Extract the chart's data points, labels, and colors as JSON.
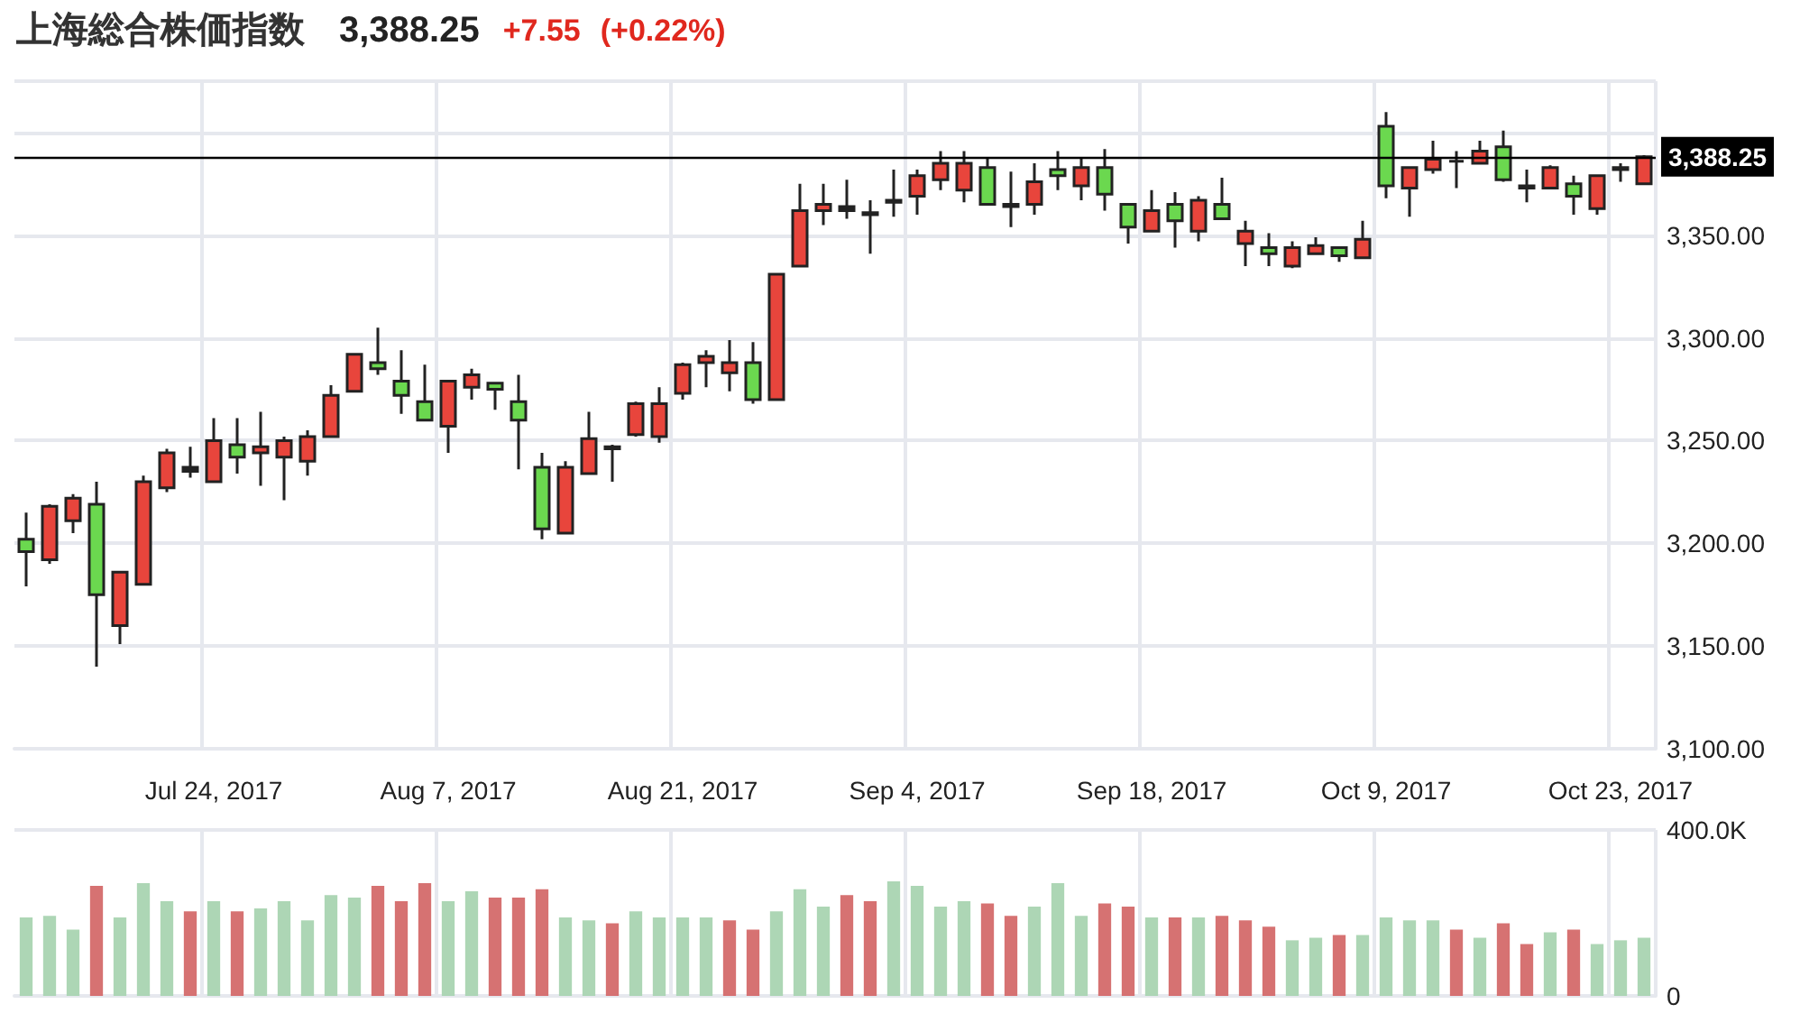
{
  "chart_data": [
    {
      "type": "candlestick",
      "title": "上海総合株価指数",
      "subtitle": "3,388.25",
      "annotations": [
        "+7.55",
        "(+0.22%)"
      ],
      "categories": [
        null,
        null,
        null,
        null,
        null,
        null,
        null,
        null,
        "Jul 24, 2017",
        null,
        null,
        null,
        null,
        null,
        null,
        null,
        null,
        null,
        "Aug 7, 2017",
        null,
        null,
        null,
        null,
        null,
        null,
        null,
        null,
        null,
        "Aug 21, 2017",
        null,
        null,
        null,
        null,
        null,
        null,
        null,
        null,
        null,
        "Sep 4, 2017",
        null,
        null,
        null,
        null,
        null,
        null,
        null,
        null,
        null,
        "Sep 18, 2017",
        null,
        null,
        null,
        null,
        null,
        null,
        null,
        null,
        null,
        "Oct 9, 2017",
        null,
        null,
        null,
        null,
        null,
        null,
        null,
        null,
        null,
        "Oct 23, 2017",
        null
      ],
      "ohlc": [
        [
          3202,
          3215,
          3179,
          3196
        ],
        [
          3192,
          3219,
          3190,
          3218
        ],
        [
          3211,
          3224,
          3205,
          3222
        ],
        [
          3219,
          3230,
          3140,
          3175
        ],
        [
          3160,
          3186,
          3151,
          3186
        ],
        [
          3180,
          3233,
          3180,
          3230
        ],
        [
          3227,
          3246,
          3225,
          3244
        ],
        [
          3235,
          3247,
          3232,
          3237
        ],
        [
          3230,
          3261,
          3230,
          3250
        ],
        [
          3248,
          3261,
          3234,
          3242
        ],
        [
          3244,
          3264,
          3228,
          3247
        ],
        [
          3242,
          3252,
          3221,
          3250
        ],
        [
          3240,
          3255,
          3233,
          3252
        ],
        [
          3252,
          3277,
          3252,
          3272
        ],
        [
          3274,
          3292,
          3274,
          3292
        ],
        [
          3288,
          3305,
          3282,
          3285
        ],
        [
          3279,
          3294,
          3263,
          3272
        ],
        [
          3269,
          3287,
          3260,
          3260
        ],
        [
          3257,
          3279,
          3244,
          3279
        ],
        [
          3276,
          3285,
          3270,
          3282
        ],
        [
          3278,
          3278,
          3265,
          3275
        ],
        [
          3269,
          3282,
          3236,
          3260
        ],
        [
          3237,
          3244,
          3202,
          3207
        ],
        [
          3205,
          3240,
          3205,
          3237
        ],
        [
          3234,
          3264,
          3234,
          3251
        ],
        [
          3246,
          3248,
          3230,
          3247
        ],
        [
          3253,
          3269,
          3252,
          3268
        ],
        [
          3252,
          3276,
          3249,
          3268
        ],
        [
          3273,
          3288,
          3270,
          3287
        ],
        [
          3288,
          3294,
          3276,
          3291
        ],
        [
          3283,
          3299,
          3274,
          3288
        ],
        [
          3288,
          3298,
          3268,
          3270
        ],
        [
          3270,
          3331,
          3270,
          3331
        ],
        [
          3335,
          3375,
          3335,
          3362
        ],
        [
          3362,
          3375,
          3355,
          3365
        ],
        [
          3362,
          3377,
          3358,
          3364
        ],
        [
          3361,
          3367,
          3341,
          3360
        ],
        [
          3366,
          3382,
          3359,
          3367
        ],
        [
          3369,
          3382,
          3360,
          3379
        ],
        [
          3377,
          3391,
          3372,
          3385
        ],
        [
          3372,
          3391,
          3366,
          3385
        ],
        [
          3383,
          3388,
          3365,
          3365
        ],
        [
          3365,
          3381,
          3354,
          3364
        ],
        [
          3365,
          3385,
          3360,
          3376
        ],
        [
          3382,
          3391,
          3372,
          3379
        ],
        [
          3374,
          3388,
          3367,
          3383
        ],
        [
          3383,
          3392,
          3362,
          3370
        ],
        [
          3365,
          3365,
          3346,
          3354
        ],
        [
          3352,
          3372,
          3352,
          3362
        ],
        [
          3365,
          3371,
          3344,
          3357
        ],
        [
          3352,
          3369,
          3347,
          3367
        ],
        [
          3365,
          3378,
          3358,
          3358
        ],
        [
          3346,
          3357,
          3335,
          3352
        ],
        [
          3344,
          3351,
          3335,
          3341
        ],
        [
          3335,
          3347,
          3334,
          3344
        ],
        [
          3341,
          3349,
          3341,
          3345
        ],
        [
          3344,
          3344,
          3337,
          3340
        ],
        [
          3339,
          3357,
          3339,
          3348
        ],
        [
          3403,
          3410,
          3368,
          3374
        ],
        [
          3373,
          3383,
          3359,
          3383
        ],
        [
          3382,
          3396,
          3380,
          3387
        ],
        [
          3386,
          3391,
          3373,
          3386
        ],
        [
          3385,
          3396,
          3385,
          3391
        ],
        [
          3393,
          3401,
          3376,
          3377
        ],
        [
          3374,
          3382,
          3366,
          3373
        ],
        [
          3373,
          3384,
          3373,
          3383
        ],
        [
          3375,
          3379,
          3360,
          3369
        ],
        [
          3363,
          3379,
          3360,
          3379
        ],
        [
          3382,
          3385,
          3376,
          3383
        ],
        [
          3375,
          3389,
          3375,
          3388.25
        ]
      ],
      "colors": [
        "#6bd84f",
        "#e8453c",
        "#e8453c",
        "#6bd84f",
        "#e8453c",
        "#e8453c",
        "#e8453c",
        "#222222",
        "#e8453c",
        "#6bd84f",
        "#e8453c",
        "#e8453c",
        "#e8453c",
        "#e8453c",
        "#e8453c",
        "#6bd84f",
        "#6bd84f",
        "#6bd84f",
        "#e8453c",
        "#e8453c",
        "#6bd84f",
        "#6bd84f",
        "#6bd84f",
        "#e8453c",
        "#e8453c",
        "#222222",
        "#e8453c",
        "#e8453c",
        "#e8453c",
        "#e8453c",
        "#e8453c",
        "#6bd84f",
        "#e8453c",
        "#e8453c",
        "#e8453c",
        "#222222",
        "#222222",
        "#222222",
        "#e8453c",
        "#e8453c",
        "#e8453c",
        "#6bd84f",
        "#222222",
        "#e8453c",
        "#6bd84f",
        "#e8453c",
        "#6bd84f",
        "#6bd84f",
        "#e8453c",
        "#6bd84f",
        "#e8453c",
        "#6bd84f",
        "#e8453c",
        "#6bd84f",
        "#e8453c",
        "#e8453c",
        "#6bd84f",
        "#e8453c",
        "#6bd84f",
        "#e8453c",
        "#e8453c",
        "#222222",
        "#e8453c",
        "#6bd84f",
        "#222222",
        "#e8453c",
        "#6bd84f",
        "#e8453c",
        "#222222",
        "#e8453c"
      ],
      "ylim": [
        3100,
        3425
      ],
      "yticks": [
        {
          "value": 3100,
          "label": "3,100.00"
        },
        {
          "value": 3150,
          "label": "3,150.00"
        },
        {
          "value": 3200,
          "label": "3,200.00"
        },
        {
          "value": 3250,
          "label": "3,250.00"
        },
        {
          "value": 3300,
          "label": "3,300.00"
        },
        {
          "value": 3350,
          "label": "3,350.00"
        },
        {
          "value": 3400,
          "label": null
        }
      ],
      "ref_lines": [
        {
          "axis": "y",
          "value": 3388.25,
          "label": "3,388.25",
          "color": "#000000"
        }
      ],
      "grid": true
    },
    {
      "type": "bar",
      "tick_labels": "y",
      "categories": [
        null,
        null,
        null,
        null,
        null,
        null,
        null,
        null,
        null,
        null,
        null,
        null,
        null,
        null,
        null,
        null,
        null,
        null,
        null,
        null,
        null,
        null,
        null,
        null,
        null,
        null,
        null,
        null,
        null,
        null,
        null,
        null,
        null,
        null,
        null,
        null,
        null,
        null,
        null,
        null,
        null,
        null,
        null,
        null,
        null,
        null,
        null,
        null,
        null,
        null,
        null,
        null,
        null,
        null,
        null,
        null,
        null,
        null,
        null,
        null,
        null,
        null,
        null,
        null,
        null,
        null,
        null,
        null,
        null,
        null
      ],
      "values": [
        189,
        193,
        160,
        265,
        189,
        272,
        228,
        204,
        228,
        204,
        211,
        228,
        182,
        243,
        237,
        265,
        228,
        272,
        228,
        252,
        237,
        237,
        257,
        189,
        182,
        175,
        204,
        189,
        189,
        189,
        182,
        160,
        204,
        257,
        215,
        243,
        228,
        276,
        265,
        215,
        228,
        223,
        193,
        215,
        272,
        193,
        223,
        215,
        189,
        189,
        189,
        193,
        182,
        167,
        134,
        140,
        147,
        147,
        189,
        182,
        182,
        160,
        140,
        175,
        125,
        153,
        160,
        125,
        134,
        140
      ],
      "colors": [
        "#a9d4b1",
        "#a9d4b1",
        "#a9d4b1",
        "#d46a6a",
        "#a9d4b1",
        "#a9d4b1",
        "#a9d4b1",
        "#d46a6a",
        "#a9d4b1",
        "#d46a6a",
        "#a9d4b1",
        "#a9d4b1",
        "#a9d4b1",
        "#a9d4b1",
        "#a9d4b1",
        "#d46a6a",
        "#d46a6a",
        "#d46a6a",
        "#a9d4b1",
        "#a9d4b1",
        "#d46a6a",
        "#d46a6a",
        "#d46a6a",
        "#a9d4b1",
        "#a9d4b1",
        "#d46a6a",
        "#a9d4b1",
        "#a9d4b1",
        "#a9d4b1",
        "#a9d4b1",
        "#d46a6a",
        "#d46a6a",
        "#a9d4b1",
        "#a9d4b1",
        "#a9d4b1",
        "#d46a6a",
        "#d46a6a",
        "#a9d4b1",
        "#a9d4b1",
        "#a9d4b1",
        "#a9d4b1",
        "#d46a6a",
        "#d46a6a",
        "#a9d4b1",
        "#a9d4b1",
        "#a9d4b1",
        "#d46a6a",
        "#d46a6a",
        "#a9d4b1",
        "#d46a6a",
        "#a9d4b1",
        "#d46a6a",
        "#d46a6a",
        "#d46a6a",
        "#a9d4b1",
        "#a9d4b1",
        "#d46a6a",
        "#a9d4b1",
        "#a9d4b1",
        "#a9d4b1",
        "#a9d4b1",
        "#d46a6a",
        "#a9d4b1",
        "#d46a6a",
        "#d46a6a",
        "#a9d4b1",
        "#d46a6a",
        "#a9d4b1",
        "#a9d4b1",
        "#a9d4b1"
      ],
      "ylim": [
        0,
        400
      ],
      "yticks": [
        0,
        {
          "value": 400,
          "label": "400.0K"
        }
      ],
      "grid": true
    }
  ]
}
